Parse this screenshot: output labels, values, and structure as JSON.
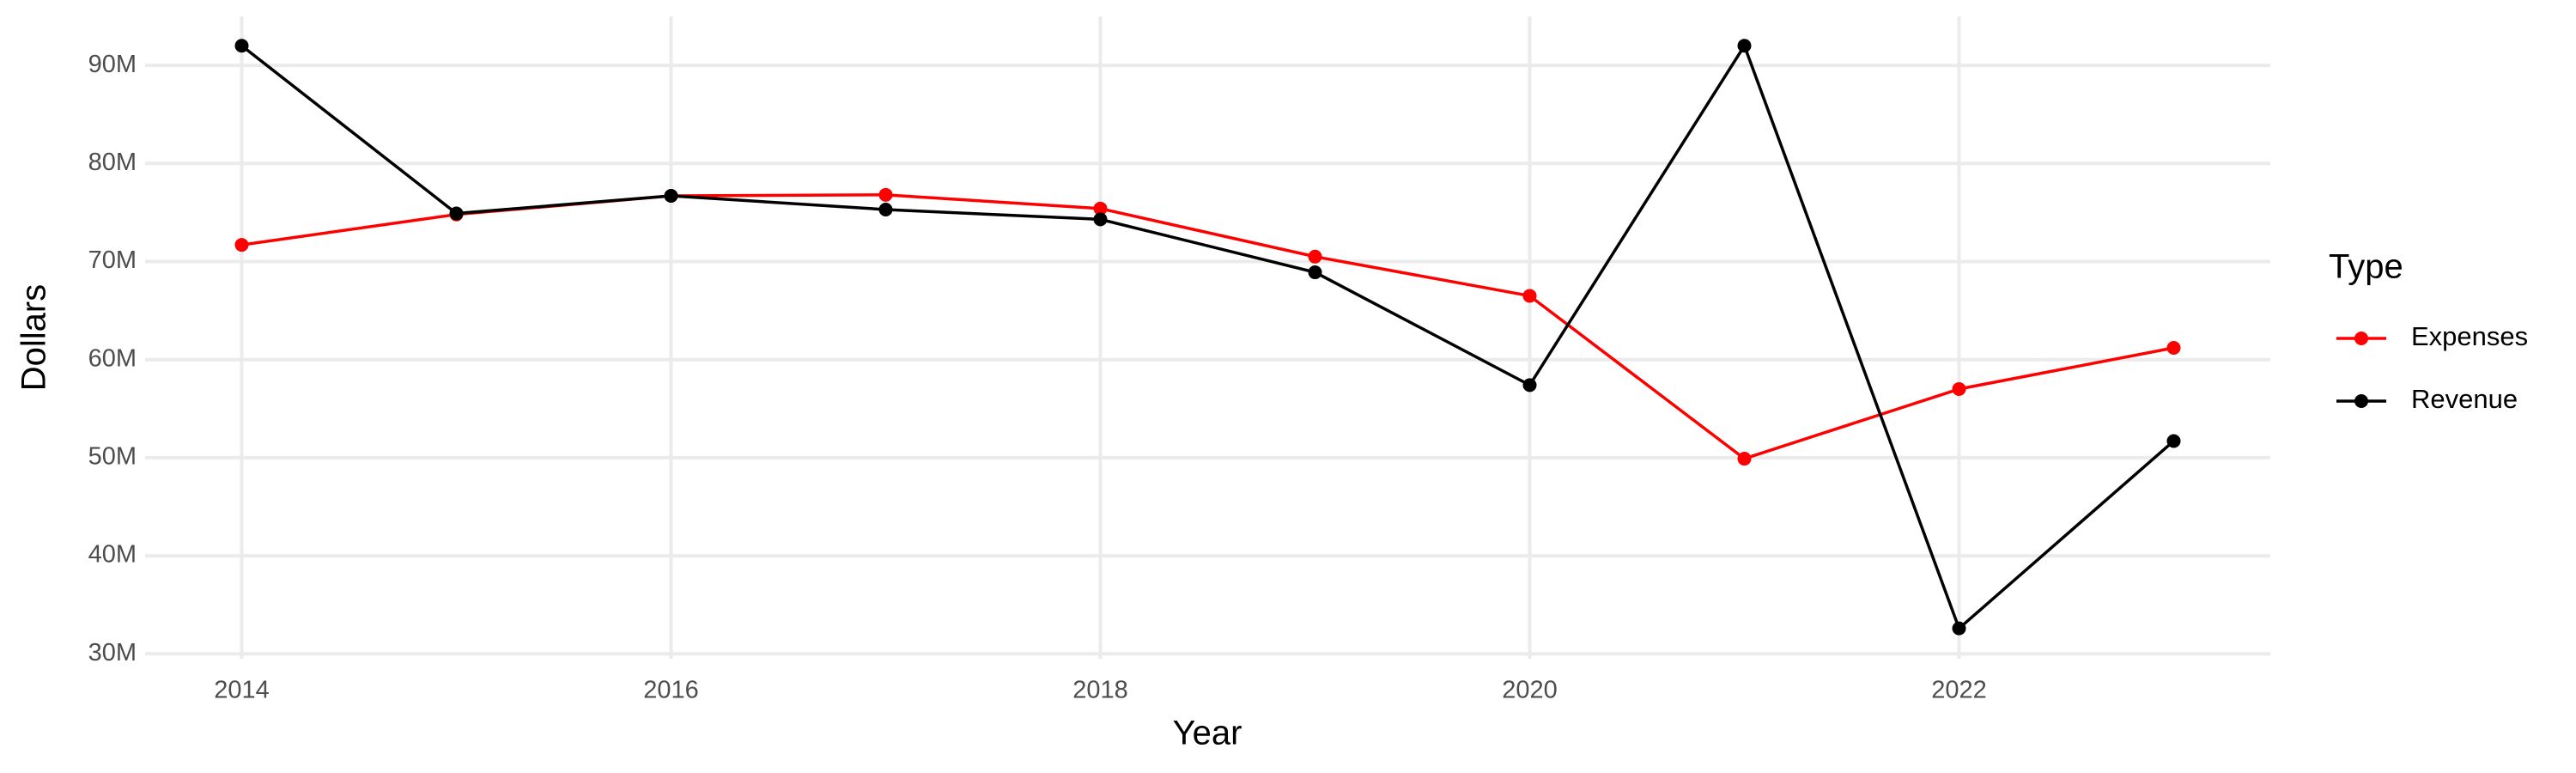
{
  "chart_data": {
    "type": "line",
    "x_label": "Year",
    "y_label": "Dollars",
    "legend_title": "Type",
    "x": [
      2014,
      2015,
      2016,
      2017,
      2018,
      2019,
      2020,
      2021,
      2022,
      2023
    ],
    "series": [
      {
        "name": "Expenses",
        "color": "#ff0000",
        "values": [
          71.7,
          74.8,
          76.7,
          76.8,
          75.4,
          70.5,
          66.5,
          49.9,
          57.0,
          61.2
        ]
      },
      {
        "name": "Revenue",
        "color": "#000000",
        "values": [
          92.0,
          74.9,
          76.7,
          75.3,
          74.3,
          68.9,
          57.4,
          92.0,
          32.6,
          51.7
        ]
      }
    ],
    "xlim": [
      2013.55,
      2023.45
    ],
    "xticks": [
      2014,
      2016,
      2018,
      2020,
      2022
    ],
    "ylim": [
      29.5,
      95
    ],
    "yticks": [
      {
        "value": 30,
        "label": "30M"
      },
      {
        "value": 40,
        "label": "40M"
      },
      {
        "value": 50,
        "label": "50M"
      },
      {
        "value": 60,
        "label": "60M"
      },
      {
        "value": 70,
        "label": "70M"
      },
      {
        "value": 80,
        "label": "80M"
      },
      {
        "value": 90,
        "label": "90M"
      }
    ],
    "grid": true,
    "legend_position": "right"
  }
}
